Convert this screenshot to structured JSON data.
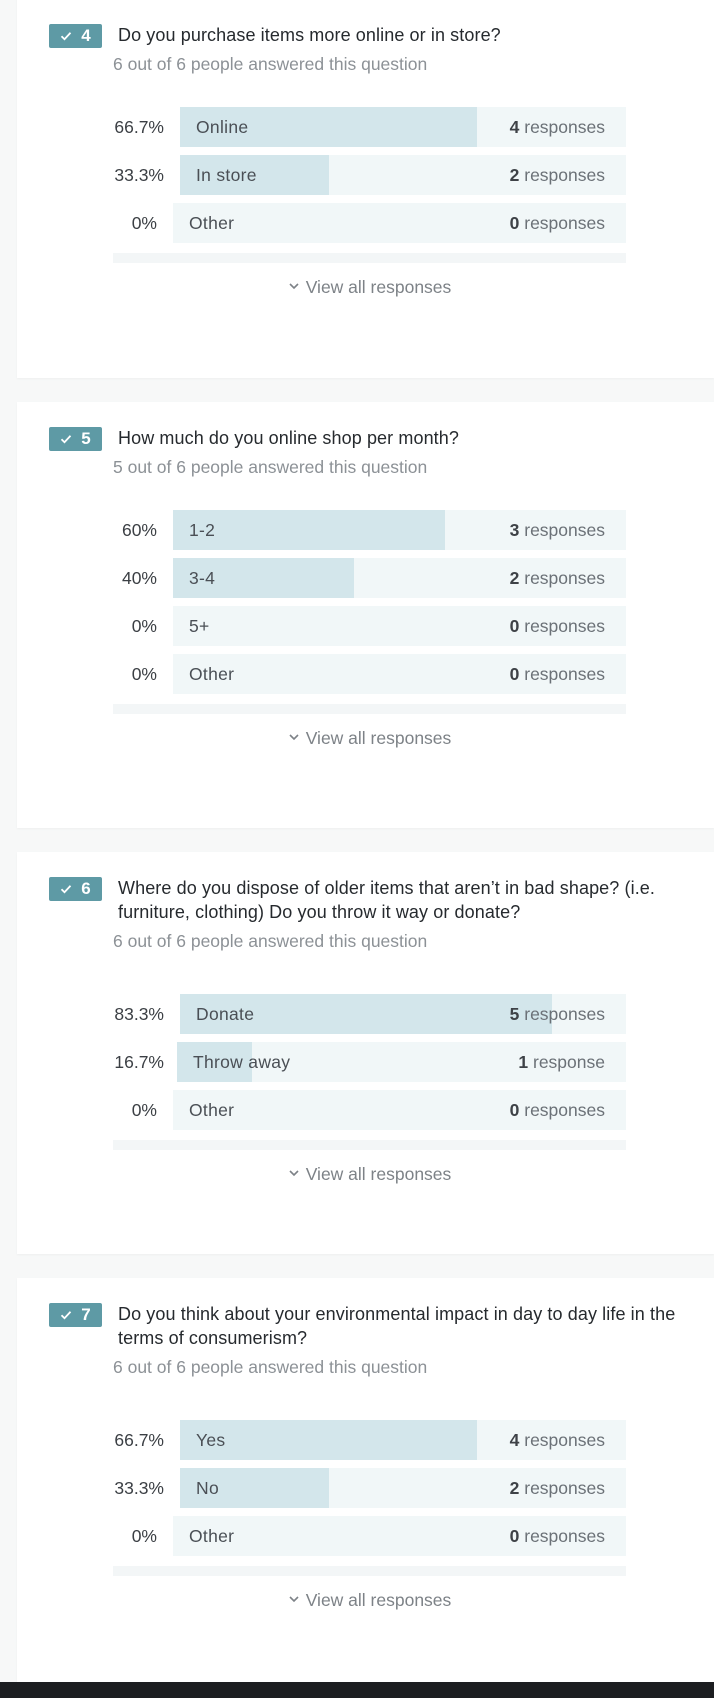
{
  "questions": [
    {
      "number": "4",
      "title": "Do you purchase items more online or in store?",
      "answered": "6 out of 6 people answered this question",
      "answers": [
        {
          "pct": "66.7%",
          "label": "Online",
          "count": "4",
          "unit": "responses",
          "share": 0.667
        },
        {
          "pct": "33.3%",
          "label": "In store",
          "count": "2",
          "unit": "responses",
          "share": 0.333
        },
        {
          "pct": "0%",
          "label": "Other",
          "count": "0",
          "unit": "responses",
          "share": 0
        }
      ],
      "view_all": "View all responses"
    },
    {
      "number": "5",
      "title": "How much do you online shop per month?",
      "answered": "5 out of 6 people answered this question",
      "answers": [
        {
          "pct": "60%",
          "label": "1-2",
          "count": "3",
          "unit": "responses",
          "share": 0.6
        },
        {
          "pct": "40%",
          "label": "3-4",
          "count": "2",
          "unit": "responses",
          "share": 0.4
        },
        {
          "pct": "0%",
          "label": "5+",
          "count": "0",
          "unit": "responses",
          "share": 0
        },
        {
          "pct": "0%",
          "label": "Other",
          "count": "0",
          "unit": "responses",
          "share": 0
        }
      ],
      "view_all": "View all responses"
    },
    {
      "number": "6",
      "title": "Where do you dispose of older items that aren’t in bad shape? (i.e. furniture, clothing) Do you throw it way or donate?",
      "answered": "6 out of 6 people answered this question",
      "answers": [
        {
          "pct": "83.3%",
          "label": "Donate",
          "count": "5",
          "unit": "responses",
          "share": 0.833
        },
        {
          "pct": "16.7%",
          "label": "Throw away",
          "count": "1",
          "unit": "response",
          "share": 0.167
        },
        {
          "pct": "0%",
          "label": "Other",
          "count": "0",
          "unit": "responses",
          "share": 0
        }
      ],
      "view_all": "View all responses"
    },
    {
      "number": "7",
      "title": "Do you think about your environmental impact in day to day life in the terms of consumerism?",
      "answered": "6 out of 6 people answered this question",
      "answers": [
        {
          "pct": "66.7%",
          "label": "Yes",
          "count": "4",
          "unit": "responses",
          "share": 0.667
        },
        {
          "pct": "33.3%",
          "label": "No",
          "count": "2",
          "unit": "responses",
          "share": 0.333
        },
        {
          "pct": "0%",
          "label": "Other",
          "count": "0",
          "unit": "responses",
          "share": 0
        }
      ],
      "view_all": "View all responses"
    }
  ],
  "colors": {
    "badge": "#5e9aa5",
    "bar_track": "#f1f7f8",
    "bar_fill": "#d3e6eb"
  }
}
